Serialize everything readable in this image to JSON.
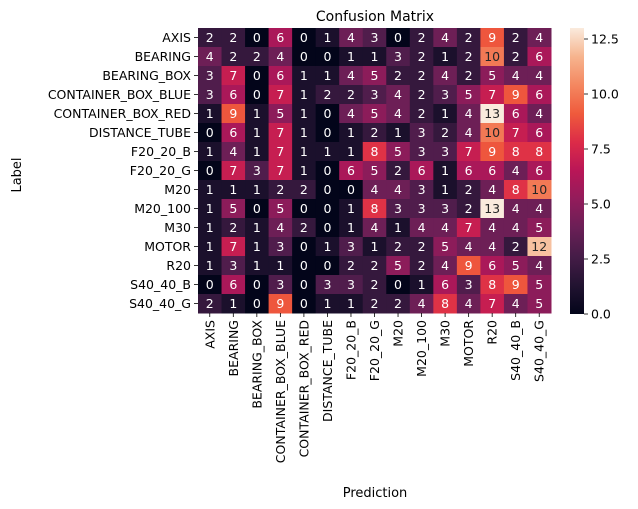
{
  "chart_data": {
    "type": "heatmap",
    "title": "Confusion Matrix",
    "xlabel": "Prediction",
    "ylabel": "Label",
    "row_labels": [
      "AXIS",
      "BEARING",
      "BEARING_BOX",
      "CONTAINER_BOX_BLUE",
      "CONTAINER_BOX_RED",
      "DISTANCE_TUBE",
      "F20_20_B",
      "F20_20_G",
      "M20",
      "M20_100",
      "M30",
      "MOTOR",
      "R20",
      "S40_40_B",
      "S40_40_G"
    ],
    "col_labels": [
      "AXIS",
      "BEARING",
      "BEARING_BOX",
      "CONTAINER_BOX_BLUE",
      "CONTAINER_BOX_RED",
      "DISTANCE_TUBE",
      "F20_20_B",
      "F20_20_G",
      "M20",
      "M20_100",
      "M30",
      "MOTOR",
      "R20",
      "S40_40_B",
      "S40_40_G"
    ],
    "values": [
      [
        2,
        2,
        0,
        6,
        0,
        1,
        4,
        3,
        0,
        2,
        4,
        2,
        9,
        2,
        4
      ],
      [
        4,
        2,
        2,
        4,
        0,
        0,
        1,
        1,
        3,
        2,
        1,
        2,
        10,
        2,
        6
      ],
      [
        3,
        7,
        0,
        6,
        1,
        1,
        4,
        5,
        2,
        2,
        4,
        2,
        5,
        4,
        4
      ],
      [
        3,
        6,
        0,
        7,
        1,
        2,
        2,
        3,
        4,
        2,
        3,
        5,
        7,
        9,
        6
      ],
      [
        1,
        9,
        1,
        5,
        1,
        0,
        4,
        5,
        4,
        2,
        1,
        4,
        13,
        6,
        4
      ],
      [
        0,
        6,
        1,
        7,
        1,
        0,
        1,
        2,
        1,
        3,
        2,
        4,
        10,
        7,
        6
      ],
      [
        1,
        4,
        1,
        7,
        1,
        1,
        1,
        8,
        5,
        3,
        3,
        7,
        9,
        8,
        8
      ],
      [
        0,
        7,
        3,
        7,
        1,
        0,
        6,
        5,
        2,
        6,
        1,
        6,
        6,
        4,
        6
      ],
      [
        1,
        1,
        1,
        2,
        2,
        0,
        0,
        4,
        4,
        3,
        1,
        2,
        4,
        8,
        10
      ],
      [
        1,
        5,
        0,
        5,
        0,
        0,
        1,
        8,
        3,
        3,
        3,
        2,
        13,
        4,
        4
      ],
      [
        1,
        2,
        1,
        4,
        2,
        0,
        1,
        4,
        1,
        4,
        4,
        7,
        4,
        4,
        5
      ],
      [
        1,
        7,
        1,
        3,
        0,
        1,
        3,
        1,
        2,
        2,
        5,
        4,
        4,
        2,
        12
      ],
      [
        1,
        3,
        1,
        1,
        0,
        0,
        2,
        2,
        5,
        2,
        4,
        9,
        6,
        5,
        4
      ],
      [
        0,
        6,
        0,
        3,
        0,
        3,
        3,
        2,
        0,
        1,
        6,
        3,
        8,
        9,
        5
      ],
      [
        2,
        1,
        0,
        9,
        0,
        1,
        1,
        2,
        2,
        4,
        8,
        4,
        7,
        4,
        5
      ]
    ],
    "vmin": 0,
    "vmax": 13,
    "colorbar_ticks": [
      "0.0",
      "2.5",
      "5.0",
      "7.5",
      "10.0",
      "12.5"
    ],
    "colormap": "rocket"
  }
}
